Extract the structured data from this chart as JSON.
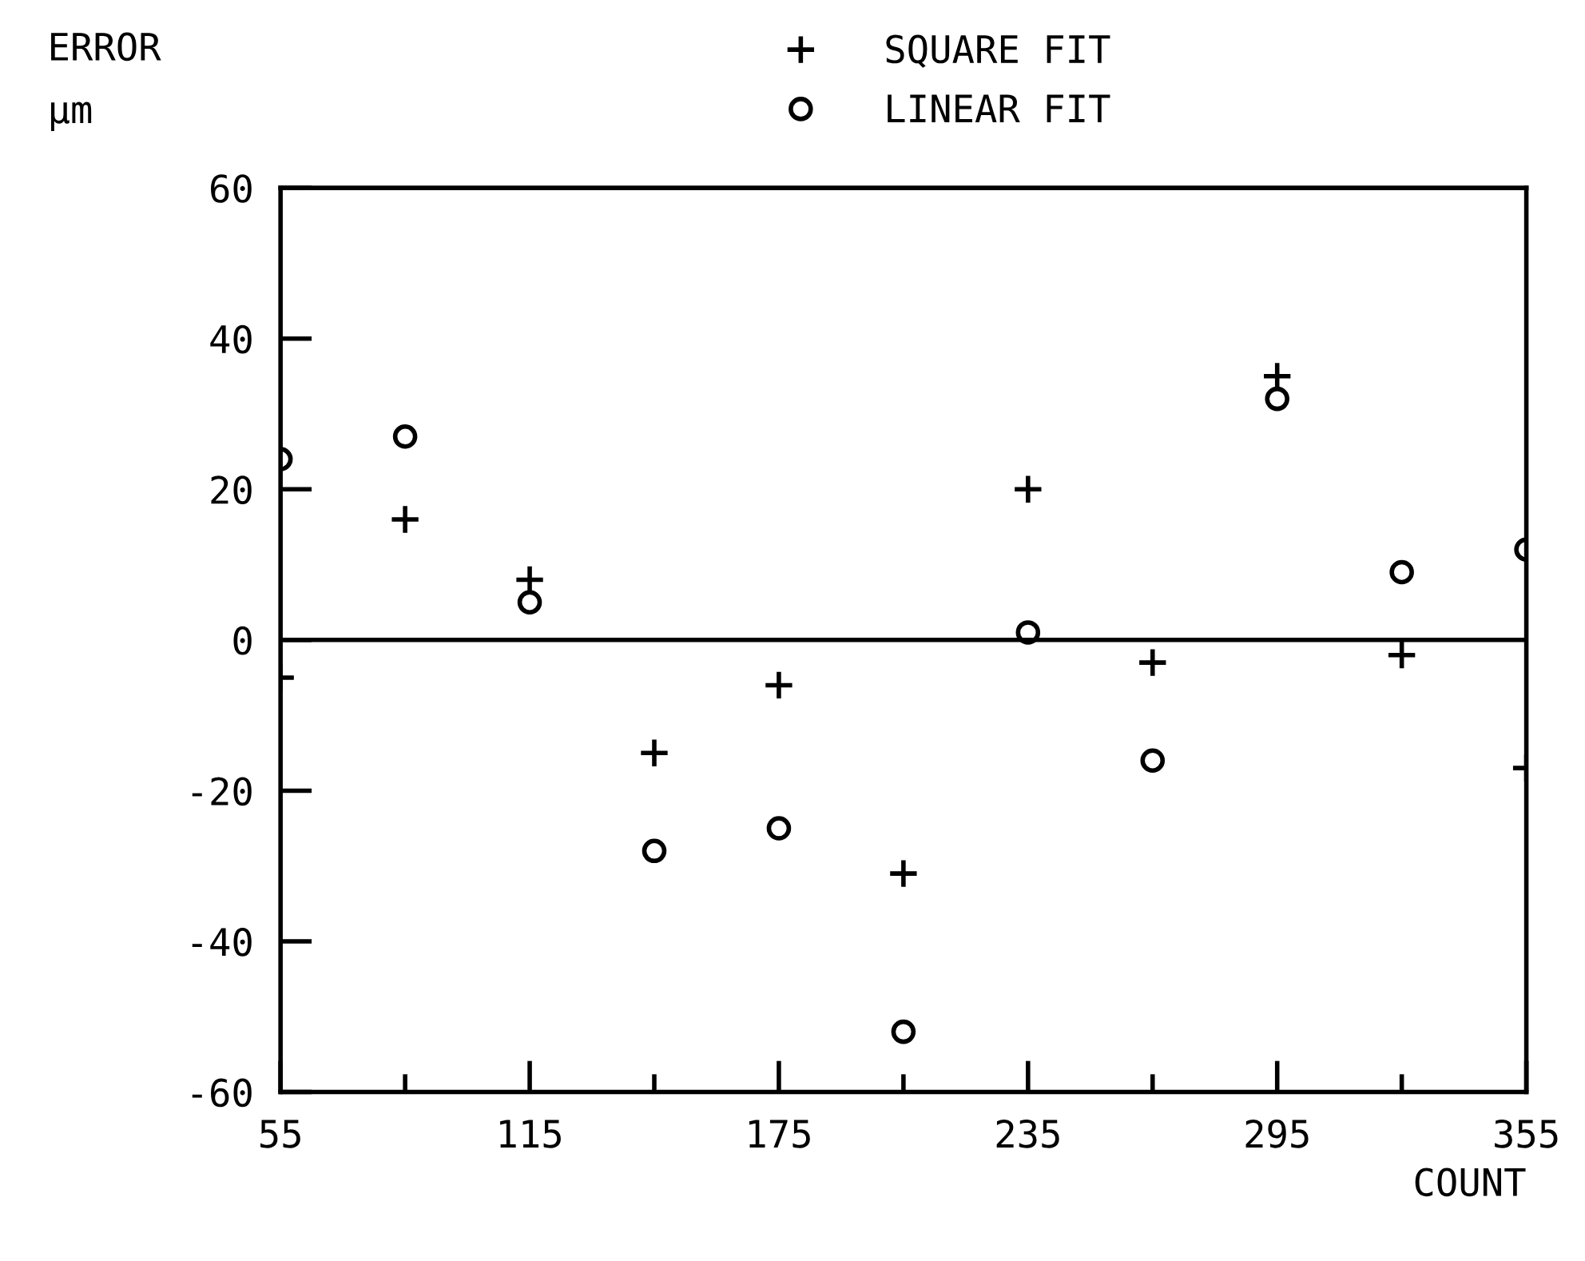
{
  "chart_data": {
    "type": "scatter",
    "ylabel": "ERROR\nμm",
    "xlabel": "COUNT",
    "x": [
      55,
      85,
      115,
      145,
      175,
      205,
      235,
      265,
      295,
      325,
      355
    ],
    "series": [
      {
        "name": "SQUARE FIT",
        "color": "#000000",
        "marker": "cross",
        "values": [
          -5,
          16,
          8,
          -15,
          -6,
          -31,
          20,
          -3,
          35,
          -2,
          -17
        ]
      },
      {
        "name": "LINEAR FIT",
        "color": "#000000",
        "marker": "circle",
        "values": [
          24,
          27,
          5,
          -28,
          -25,
          -52,
          1,
          -16,
          32,
          9,
          12
        ]
      }
    ],
    "xlim": [
      55,
      355
    ],
    "xticks": [
      55,
      115,
      175,
      235,
      295,
      355
    ],
    "ylim": [
      -60,
      60
    ],
    "yticks": [
      -60,
      -40,
      -20,
      0,
      20,
      40,
      60
    ],
    "ref_lines": [
      {
        "axis": "y",
        "value": 0,
        "color": "#000000"
      }
    ],
    "grid": false,
    "legend": "top"
  }
}
